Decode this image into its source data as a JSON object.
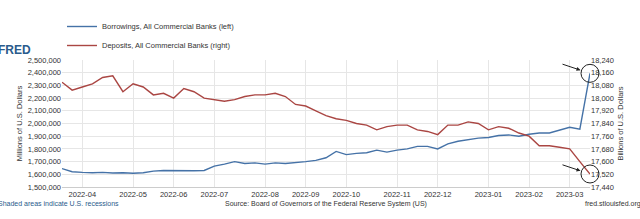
{
  "chart_data": {
    "type": "line",
    "annotations": [
      "FRED",
      "Shaded areas indicate U.S. recessions",
      "Source: Board of Governors of the Federal Reserve System (US)",
      "fred.stlouisfed.org"
    ],
    "categories": [
      null,
      null,
      "2022-04",
      null,
      null,
      null,
      null,
      "2022-05",
      null,
      null,
      null,
      "2022-06",
      null,
      null,
      null,
      "2022-07",
      null,
      null,
      null,
      null,
      "2022-08",
      null,
      null,
      null,
      "2022-09",
      null,
      null,
      null,
      "2022-10",
      null,
      null,
      null,
      null,
      "2022-11",
      null,
      null,
      null,
      "2022-12",
      null,
      null,
      null,
      null,
      "2023-01",
      null,
      null,
      null,
      "2023-02",
      null,
      null,
      null,
      "2023-03",
      null,
      null
    ],
    "series": [
      {
        "name": "Borrowings, All Commercial Banks (left)",
        "color": "#4572a7",
        "values": [
          1645000,
          1620000,
          1615000,
          1612000,
          1615000,
          1610000,
          1612000,
          1608000,
          1612000,
          1625000,
          1630000,
          1628000,
          1625000,
          1628000,
          1630000,
          1665000,
          1680000,
          1700000,
          1685000,
          1690000,
          1680000,
          1690000,
          1685000,
          1690000,
          1700000,
          1710000,
          1730000,
          1780000,
          1755000,
          1765000,
          1770000,
          1790000,
          1775000,
          1790000,
          1800000,
          1820000,
          1820000,
          1800000,
          1840000,
          1860000,
          1875000,
          1885000,
          1890000,
          1905000,
          1910000,
          1900000,
          1915000,
          1925000,
          1925000,
          1945000,
          1970000,
          1955000,
          2395000
        ]
      },
      {
        "name": "Deposits, All Commercial Banks (right)",
        "color": "#aa4643",
        "axis": "y2",
        "values": [
          18100,
          18050,
          18070,
          18090,
          18130,
          18140,
          18040,
          18090,
          18070,
          18020,
          18030,
          18000,
          18060,
          18040,
          18000,
          17990,
          17980,
          17990,
          18010,
          18020,
          18020,
          18030,
          18010,
          17960,
          17950,
          17920,
          17890,
          17870,
          17860,
          17840,
          17830,
          17800,
          17820,
          17830,
          17830,
          17800,
          17790,
          17770,
          17830,
          17830,
          17850,
          17840,
          17800,
          17820,
          17810,
          17780,
          17760,
          17700,
          17700,
          17690,
          17680,
          17600,
          17522
        ]
      }
    ],
    "ylabel": "Millions of U.S. Dollars",
    "y2label": "Billions of U.S. Dollars",
    "ylim": [
      1500000,
      2500000
    ],
    "yticks": [
      {
        "value": 1500000,
        "label": "1,500,000"
      },
      {
        "value": 1600000,
        "label": "1,600,000"
      },
      {
        "value": 1700000,
        "label": "1,700,000"
      },
      {
        "value": 1800000,
        "label": "1,800,000"
      },
      {
        "value": 1900000,
        "label": "1,900,000"
      },
      {
        "value": 2000000,
        "label": "2,000,000"
      },
      {
        "value": 2100000,
        "label": "2,100,000"
      },
      {
        "value": 2200000,
        "label": "2,200,000"
      },
      {
        "value": 2300000,
        "label": "2,300,000"
      },
      {
        "value": 2400000,
        "label": "2,400,000"
      },
      {
        "value": 2500000,
        "label": "2,500,000"
      }
    ],
    "y2lim": [
      17440,
      18240
    ],
    "y2ticks": [
      {
        "value": 17440,
        "label": "17,440"
      },
      {
        "value": 17520,
        "label": "17,520"
      },
      {
        "value": 17600,
        "label": "17,600"
      },
      {
        "value": 17680,
        "label": "17,680"
      },
      {
        "value": 17760,
        "label": "17,760"
      },
      {
        "value": 17840,
        "label": "17,840"
      },
      {
        "value": 17920,
        "label": "17,920"
      },
      {
        "value": 18000,
        "label": "18,000"
      },
      {
        "value": 18080,
        "label": "18,080"
      },
      {
        "value": 18160,
        "label": "18,160"
      },
      {
        "value": 18240,
        "label": "18,240"
      }
    ],
    "grid": true,
    "legend": "top-left"
  }
}
